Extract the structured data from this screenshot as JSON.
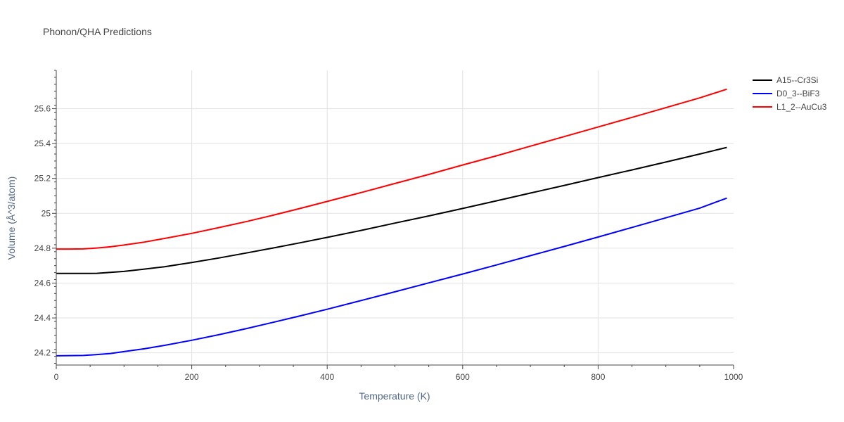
{
  "chart_data": {
    "type": "line",
    "title": "Phonon/QHA Predictions",
    "xlabel": "Temperature (K)",
    "ylabel": "Volume (Å^3/atom)",
    "xlim": [
      0,
      1000
    ],
    "ylim": [
      24.13,
      25.82
    ],
    "xticks": [
      0,
      200,
      400,
      600,
      800,
      1000
    ],
    "xtick_labels": [
      "0",
      "200",
      "400",
      "600",
      "800",
      "1000"
    ],
    "yticks": [
      24.2,
      24.4,
      24.6,
      24.8,
      25.0,
      25.2,
      25.4,
      25.6
    ],
    "ytick_labels": [
      "24.2",
      "24.4",
      "24.6",
      "24.8",
      "25",
      "25.2",
      "25.4",
      "25.6"
    ],
    "grid": true,
    "legend_position": "top-right",
    "series": [
      {
        "name": "A15--Cr3Si",
        "color": "#000000",
        "x": [
          0,
          20,
          40,
          60,
          80,
          100,
          130,
          160,
          200,
          240,
          280,
          320,
          360,
          400,
          450,
          500,
          550,
          600,
          650,
          700,
          750,
          800,
          850,
          900,
          950,
          990
        ],
        "y": [
          24.655,
          24.655,
          24.655,
          24.656,
          24.661,
          24.667,
          24.68,
          24.694,
          24.718,
          24.744,
          24.772,
          24.801,
          24.831,
          24.862,
          24.902,
          24.944,
          24.985,
          25.028,
          25.072,
          25.116,
          25.16,
          25.205,
          25.249,
          25.294,
          25.34,
          25.378
        ]
      },
      {
        "name": "D0_3--BiF3",
        "color": "#0000ff",
        "x": [
          0,
          20,
          40,
          60,
          80,
          100,
          130,
          160,
          200,
          240,
          280,
          320,
          360,
          400,
          450,
          500,
          550,
          600,
          650,
          700,
          750,
          800,
          850,
          900,
          950,
          990
        ],
        "y": [
          24.183,
          24.184,
          24.185,
          24.19,
          24.196,
          24.207,
          24.223,
          24.243,
          24.272,
          24.304,
          24.338,
          24.375,
          24.412,
          24.45,
          24.5,
          24.55,
          24.601,
          24.652,
          24.704,
          24.757,
          24.81,
          24.864,
          24.919,
          24.974,
          25.03,
          25.087
        ]
      },
      {
        "name": "L1_2--AuCu3",
        "color": "#ff0000",
        "x": [
          0,
          20,
          40,
          60,
          80,
          100,
          130,
          160,
          200,
          240,
          280,
          320,
          360,
          400,
          450,
          500,
          550,
          600,
          650,
          700,
          750,
          800,
          850,
          900,
          950,
          990
        ],
        "y": [
          24.795,
          24.795,
          24.796,
          24.801,
          24.808,
          24.818,
          24.835,
          24.856,
          24.885,
          24.918,
          24.952,
          24.989,
          25.028,
          25.068,
          25.119,
          25.171,
          25.223,
          25.277,
          25.33,
          25.385,
          25.44,
          25.495,
          25.55,
          25.606,
          25.662,
          25.712
        ]
      }
    ]
  }
}
